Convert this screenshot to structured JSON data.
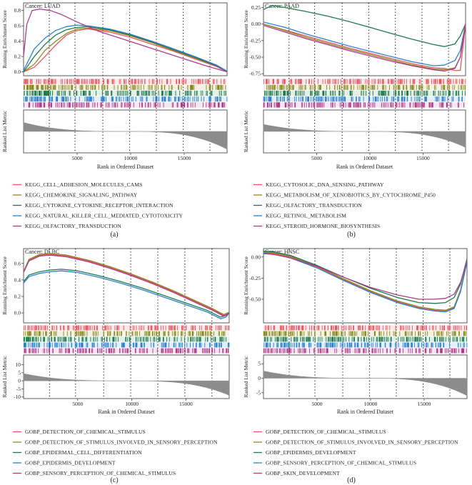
{
  "figure": {
    "colors": {
      "red": "#e8555c",
      "olive": "#8a8a22",
      "green": "#1d7a4e",
      "blue": "#2a7fd0",
      "purple": "#b03a8a",
      "metric": "#8c8c8c"
    },
    "x_axis_label": "Rank in Ordered Dataset",
    "y_axis_top_label": "Running Enrichment Score",
    "y_axis_bottom_label": "Ranked List Metric"
  },
  "chart_data": [
    {
      "type": "line",
      "panel_label": "(a)",
      "title": "Cancer: LUAD",
      "xlim": [
        0,
        19000
      ],
      "x_ticks": [
        5000,
        10000,
        15000
      ],
      "x_tick_labels": [
        "5000",
        "10000",
        "15000"
      ],
      "ylim": [
        -0.05,
        0.9
      ],
      "y_ticks": [
        0.0,
        0.2,
        0.4,
        0.6,
        0.8
      ],
      "y_tick_labels": [
        "0.0",
        "0.2",
        "0.4",
        "0.6",
        "0.8"
      ],
      "metric_ylim": [
        -6,
        6
      ],
      "metric_ticks": [],
      "metric_tick_labels": [],
      "metric_profile": {
        "left": 2.5,
        "right": -5.0
      },
      "vlines": [
        2400,
        4800,
        7400,
        9900,
        12400,
        14900,
        17400
      ],
      "series": [
        {
          "name": "KEGG_CELL_ADHESION_MOLECULES_CAMS",
          "color": "red",
          "x": [
            0,
            1000,
            2000,
            3000,
            4000,
            5000,
            6000,
            8000,
            10000,
            12000,
            14000,
            16000,
            18000,
            19000
          ],
          "y": [
            0.0,
            0.06,
            0.2,
            0.35,
            0.48,
            0.54,
            0.56,
            0.52,
            0.45,
            0.36,
            0.27,
            0.17,
            0.07,
            0.0
          ]
        },
        {
          "name": "KEGG_CHEMOKINE_SIGNALING_PATHWAY",
          "color": "olive",
          "x": [
            0,
            1000,
            2000,
            3000,
            4000,
            5000,
            6000,
            8000,
            10000,
            12000,
            14000,
            16000,
            18000,
            19000
          ],
          "y": [
            0.0,
            0.1,
            0.28,
            0.4,
            0.5,
            0.56,
            0.57,
            0.54,
            0.47,
            0.38,
            0.28,
            0.18,
            0.08,
            0.01
          ]
        },
        {
          "name": "KEGG_CYTOKINE_CYTOKINE_RECEPTOR_INTERACTION",
          "color": "green",
          "x": [
            0,
            1000,
            2000,
            3000,
            4000,
            5000,
            6000,
            8000,
            10000,
            12000,
            14000,
            16000,
            18000,
            19000
          ],
          "y": [
            0.0,
            0.2,
            0.36,
            0.48,
            0.55,
            0.58,
            0.59,
            0.55,
            0.48,
            0.39,
            0.29,
            0.19,
            0.08,
            0.01
          ]
        },
        {
          "name": "KEGG_NATURAL_KILLER_CELL_MEDIATED_CYTOTOXICITY",
          "color": "blue",
          "x": [
            0,
            1000,
            2000,
            3000,
            4000,
            5000,
            6000,
            8000,
            10000,
            12000,
            14000,
            16000,
            18000,
            19000
          ],
          "y": [
            0.02,
            0.3,
            0.44,
            0.54,
            0.59,
            0.61,
            0.6,
            0.56,
            0.49,
            0.4,
            0.3,
            0.2,
            0.09,
            0.01
          ]
        },
        {
          "name": "KEGG_OLFACTORY_TRANSDUCTION",
          "color": "purple",
          "x": [
            0,
            300,
            800,
            1500,
            2500,
            3500,
            5000,
            7000,
            9000,
            11000,
            13000,
            15000,
            17000,
            19000
          ],
          "y": [
            0.2,
            0.62,
            0.8,
            0.82,
            0.8,
            0.75,
            0.65,
            0.53,
            0.44,
            0.35,
            0.26,
            0.17,
            0.08,
            0.0
          ]
        }
      ]
    },
    {
      "type": "line",
      "panel_label": "(b)",
      "title": "Cancer: PAAD",
      "xlim": [
        0,
        19000
      ],
      "x_ticks": [
        5000,
        10000,
        15000
      ],
      "x_tick_labels": [
        "5000",
        "10000",
        "15000"
      ],
      "ylim": [
        -0.78,
        0.32
      ],
      "y_ticks": [
        0.25,
        0.0,
        -0.25,
        -0.5,
        -0.75
      ],
      "y_tick_labels": [
        "0.25",
        "0.00",
        "-0.25",
        "-0.50",
        "-0.75"
      ],
      "metric_ylim": [
        -6,
        6
      ],
      "metric_ticks": [],
      "metric_tick_labels": [],
      "metric_profile": {
        "left": 2.0,
        "right": -4.5
      },
      "vlines": [
        2400,
        4800,
        7400,
        9900,
        12400,
        14900,
        17400
      ],
      "series": [
        {
          "name": "KEGG_CYTOSOLIC_DNA_SENSING_PATHWAY",
          "color": "red",
          "x": [
            0,
            2000,
            4000,
            6000,
            8000,
            10000,
            12000,
            14000,
            16000,
            17000,
            18000,
            18500,
            19000
          ],
          "y": [
            0.0,
            -0.09,
            -0.18,
            -0.27,
            -0.36,
            -0.44,
            -0.52,
            -0.6,
            -0.66,
            -0.67,
            -0.7,
            -0.7,
            0.0
          ]
        },
        {
          "name": "KEGG_METABOLISM_OF_XENOBIOTICS_BY_CYTOCHROME_P450",
          "color": "olive",
          "x": [
            0,
            2000,
            4000,
            6000,
            8000,
            10000,
            12000,
            14000,
            16000,
            17000,
            18000,
            18500,
            19000
          ],
          "y": [
            0.0,
            -0.1,
            -0.2,
            -0.29,
            -0.38,
            -0.46,
            -0.54,
            -0.62,
            -0.68,
            -0.69,
            -0.66,
            -0.5,
            0.0
          ]
        },
        {
          "name": "KEGG_OLFACTORY_TRANSDUCTION",
          "color": "green",
          "x": [
            0,
            800,
            2000,
            4000,
            6000,
            8000,
            10000,
            12000,
            14000,
            16000,
            17000,
            18000,
            18500,
            19000
          ],
          "y": [
            0.22,
            0.28,
            0.25,
            0.19,
            0.12,
            0.04,
            -0.05,
            -0.14,
            -0.23,
            -0.31,
            -0.34,
            -0.3,
            -0.18,
            0.0
          ]
        },
        {
          "name": "KEGG_RETINOL_METABOLISM",
          "color": "blue",
          "x": [
            0,
            2000,
            4000,
            6000,
            8000,
            10000,
            12000,
            14000,
            16000,
            17000,
            18000,
            18500,
            19000
          ],
          "y": [
            0.03,
            -0.05,
            -0.15,
            -0.24,
            -0.33,
            -0.41,
            -0.49,
            -0.57,
            -0.63,
            -0.62,
            -0.55,
            -0.4,
            0.0
          ]
        },
        {
          "name": "KEGG_STEROID_HORMONE_BIOSYNTHESIS",
          "color": "purple",
          "x": [
            0,
            2000,
            4000,
            6000,
            8000,
            10000,
            12000,
            14000,
            16000,
            17000,
            18000,
            18500,
            19000
          ],
          "y": [
            -0.02,
            -0.12,
            -0.22,
            -0.31,
            -0.4,
            -0.48,
            -0.56,
            -0.63,
            -0.69,
            -0.71,
            -0.67,
            -0.5,
            0.0
          ]
        }
      ]
    },
    {
      "type": "line",
      "panel_label": "(c)",
      "title": "Cancer: DLBC",
      "xlim": [
        0,
        19000
      ],
      "x_ticks": [
        5000,
        10000,
        15000
      ],
      "x_tick_labels": [
        "5000",
        "10000",
        "15000"
      ],
      "ylim": [
        -0.12,
        0.78
      ],
      "y_ticks": [
        0.0,
        0.2,
        0.4,
        0.6
      ],
      "y_tick_labels": [
        "0.0",
        "0.2",
        "0.4",
        "0.6"
      ],
      "metric_ylim": [
        -11,
        16
      ],
      "metric_ticks": [
        10,
        5,
        0,
        -5,
        -10
      ],
      "metric_tick_labels": [
        "10",
        "5",
        "0",
        "-5",
        "-10"
      ],
      "metric_profile": {
        "left": 4.5,
        "right": -9.0
      },
      "vlines": [
        2400,
        4800,
        7400,
        9900,
        12400,
        14900,
        17400
      ],
      "series": [
        {
          "name": "GOBP_DETECTION_OF_CHEMICAL_STIMULUS",
          "color": "red",
          "x": [
            0,
            500,
            1500,
            2500,
            4000,
            6000,
            8000,
            10000,
            12000,
            14000,
            16000,
            17500,
            18500,
            19000
          ],
          "y": [
            0.5,
            0.64,
            0.7,
            0.71,
            0.69,
            0.63,
            0.55,
            0.46,
            0.36,
            0.25,
            0.13,
            0.04,
            -0.03,
            0.0
          ]
        },
        {
          "name": "GOBP_DETECTION_OF_STIMULUS_INVOLVED_IN_SENSORY_PERCEPTION",
          "color": "olive",
          "x": [
            0,
            500,
            1500,
            2500,
            4000,
            6000,
            8000,
            10000,
            12000,
            14000,
            16000,
            17500,
            18500,
            19000
          ],
          "y": [
            0.5,
            0.65,
            0.71,
            0.72,
            0.7,
            0.64,
            0.56,
            0.47,
            0.37,
            0.26,
            0.14,
            0.05,
            -0.02,
            0.01
          ]
        },
        {
          "name": "GOBP_EPIDERMAL_CELL_DIFFERENTIATION",
          "color": "green",
          "x": [
            0,
            500,
            1500,
            2500,
            3500,
            5000,
            7000,
            9000,
            11000,
            13000,
            15000,
            17000,
            18200,
            18700,
            19000
          ],
          "y": [
            0.38,
            0.46,
            0.5,
            0.52,
            0.53,
            0.51,
            0.45,
            0.38,
            0.3,
            0.21,
            0.12,
            0.03,
            -0.05,
            -0.03,
            0.0
          ]
        },
        {
          "name": "GOBP_EPIDERMIS_DEVELOPMENT",
          "color": "blue",
          "x": [
            0,
            500,
            1500,
            2500,
            3500,
            5000,
            7000,
            9000,
            11000,
            13000,
            15000,
            17000,
            18200,
            18700,
            19000
          ],
          "y": [
            0.36,
            0.44,
            0.48,
            0.5,
            0.51,
            0.49,
            0.43,
            0.36,
            0.28,
            0.19,
            0.1,
            0.01,
            -0.07,
            -0.05,
            0.0
          ]
        },
        {
          "name": "GOBP_SENSORY_PERCEPTION_OF_CHEMICAL_STIMULUS",
          "color": "purple",
          "x": [
            0,
            500,
            1500,
            2500,
            4000,
            6000,
            8000,
            10000,
            12000,
            14000,
            16000,
            17500,
            18500,
            19000
          ],
          "y": [
            0.49,
            0.63,
            0.69,
            0.7,
            0.68,
            0.62,
            0.54,
            0.45,
            0.35,
            0.24,
            0.12,
            0.03,
            -0.04,
            -0.01
          ]
        }
      ]
    },
    {
      "type": "line",
      "panel_label": "(d)",
      "title": "Cancer: HNSC",
      "xlim": [
        0,
        19000
      ],
      "x_ticks": [
        5000,
        10000,
        15000
      ],
      "x_tick_labels": [
        "5000",
        "10000",
        "15000"
      ],
      "ylim": [
        -0.78,
        0.1
      ],
      "y_ticks": [
        0.0,
        -0.25,
        -0.5
      ],
      "y_tick_labels": [
        "0.00",
        "-0.25",
        "-0.50"
      ],
      "metric_ylim": [
        -7,
        8
      ],
      "metric_ticks": [
        5,
        0,
        -5
      ],
      "metric_tick_labels": [
        "5",
        "0",
        "-5"
      ],
      "metric_profile": {
        "left": 2.5,
        "right": -6.0
      },
      "vlines": [
        2400,
        4800,
        7400,
        9900,
        12400,
        14900,
        17400
      ],
      "series": [
        {
          "name": "GOBP_DETECTION_OF_CHEMICAL_STIMULUS",
          "color": "red",
          "x": [
            0,
            1000,
            2500,
            5000,
            7500,
            10000,
            12500,
            14500,
            16000,
            17000,
            17800,
            18400,
            19000
          ],
          "y": [
            0.05,
            0.04,
            0.0,
            -0.12,
            -0.27,
            -0.41,
            -0.53,
            -0.6,
            -0.63,
            -0.64,
            -0.6,
            -0.4,
            -0.05
          ]
        },
        {
          "name": "GOBP_DETECTION_OF_STIMULUS_INVOLVED_IN_SENSORY_PERCEPTION",
          "color": "olive",
          "x": [
            0,
            1000,
            2500,
            5000,
            7500,
            10000,
            12500,
            14500,
            16000,
            17000,
            17800,
            18400,
            19000
          ],
          "y": [
            0.06,
            0.05,
            0.01,
            -0.11,
            -0.26,
            -0.4,
            -0.52,
            -0.59,
            -0.62,
            -0.63,
            -0.59,
            -0.39,
            -0.04
          ]
        },
        {
          "name": "GOBP_EPIDERMIS_DEVELOPMENT",
          "color": "green",
          "x": [
            0,
            1000,
            2500,
            5000,
            7500,
            10000,
            12500,
            14500,
            16000,
            17000,
            17800,
            18400,
            19000
          ],
          "y": [
            0.07,
            0.06,
            0.02,
            -0.1,
            -0.24,
            -0.37,
            -0.48,
            -0.54,
            -0.55,
            -0.54,
            -0.48,
            -0.32,
            -0.02
          ]
        },
        {
          "name": "GOBP_SENSORY_PERCEPTION_OF_CHEMICAL_STIMULUS",
          "color": "blue",
          "x": [
            0,
            1000,
            2500,
            5000,
            7500,
            10000,
            12500,
            14500,
            16000,
            17000,
            17800,
            18400,
            19000
          ],
          "y": [
            0.05,
            0.03,
            -0.01,
            -0.13,
            -0.28,
            -0.42,
            -0.54,
            -0.61,
            -0.64,
            -0.65,
            -0.61,
            -0.41,
            -0.06
          ]
        },
        {
          "name": "GOBP_SKIN_DEVELOPMENT",
          "color": "purple",
          "x": [
            0,
            1000,
            2500,
            5000,
            7500,
            10000,
            12500,
            14500,
            16000,
            17000,
            17800,
            18400,
            19000
          ],
          "y": [
            0.04,
            0.03,
            -0.01,
            -0.11,
            -0.24,
            -0.36,
            -0.45,
            -0.5,
            -0.5,
            -0.49,
            -0.44,
            -0.3,
            -0.04
          ]
        }
      ]
    }
  ]
}
